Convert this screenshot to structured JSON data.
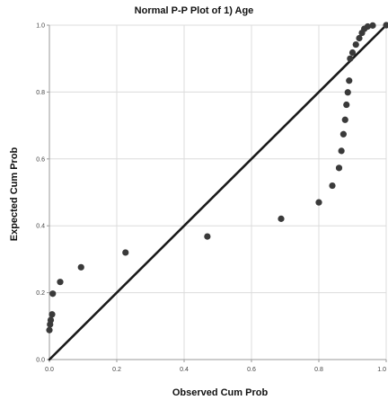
{
  "chart_data": {
    "type": "scatter",
    "title": "Normal P-P Plot of 1) Age",
    "xlabel": "Observed Cum Prob",
    "ylabel": "Expected Cum Prob",
    "xlim": [
      0,
      1
    ],
    "ylim": [
      0,
      1
    ],
    "grid": true,
    "x_ticks": [
      {
        "value": 0.0,
        "label": "0.0"
      },
      {
        "value": 0.2,
        "label": "0.2"
      },
      {
        "value": 0.4,
        "label": "0.4"
      },
      {
        "value": 0.6,
        "label": "0.6"
      },
      {
        "value": 0.8,
        "label": "0.8"
      },
      {
        "value": 1.0,
        "label": "1.0"
      }
    ],
    "y_ticks": [
      {
        "value": 0.0,
        "label": "0.0"
      },
      {
        "value": 0.2,
        "label": "0.2"
      },
      {
        "value": 0.4,
        "label": "0.4"
      },
      {
        "value": 0.6,
        "label": "0.6"
      },
      {
        "value": 0.8,
        "label": "0.8"
      },
      {
        "value": 1.0,
        "label": "1.0"
      }
    ],
    "reference_line": {
      "x": [
        0,
        1
      ],
      "y": [
        0,
        1
      ]
    },
    "colors": {
      "points": "#3a3a3a",
      "line": "#1a1a1a",
      "grid": "#dcdcdc",
      "axis": "#9a9a9a"
    },
    "points": [
      {
        "x": 0.0,
        "y": 0.088
      },
      {
        "x": 0.002,
        "y": 0.105
      },
      {
        "x": 0.004,
        "y": 0.118
      },
      {
        "x": 0.008,
        "y": 0.135
      },
      {
        "x": 0.01,
        "y": 0.197
      },
      {
        "x": 0.032,
        "y": 0.232
      },
      {
        "x": 0.094,
        "y": 0.276
      },
      {
        "x": 0.226,
        "y": 0.32
      },
      {
        "x": 0.469,
        "y": 0.368
      },
      {
        "x": 0.688,
        "y": 0.421
      },
      {
        "x": 0.8,
        "y": 0.47
      },
      {
        "x": 0.84,
        "y": 0.52
      },
      {
        "x": 0.86,
        "y": 0.573
      },
      {
        "x": 0.867,
        "y": 0.624
      },
      {
        "x": 0.873,
        "y": 0.674
      },
      {
        "x": 0.878,
        "y": 0.717
      },
      {
        "x": 0.882,
        "y": 0.762
      },
      {
        "x": 0.886,
        "y": 0.799
      },
      {
        "x": 0.89,
        "y": 0.834
      },
      {
        "x": 0.893,
        "y": 0.9
      },
      {
        "x": 0.9,
        "y": 0.918
      },
      {
        "x": 0.91,
        "y": 0.942
      },
      {
        "x": 0.92,
        "y": 0.961
      },
      {
        "x": 0.928,
        "y": 0.977
      },
      {
        "x": 0.935,
        "y": 0.989
      },
      {
        "x": 0.945,
        "y": 0.996
      },
      {
        "x": 0.96,
        "y": 0.999
      },
      {
        "x": 1.0,
        "y": 1.0
      }
    ]
  }
}
